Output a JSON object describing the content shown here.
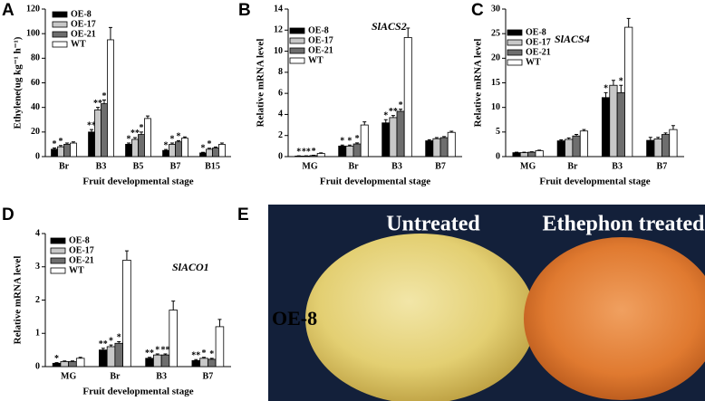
{
  "chart_data": [
    {
      "type": "bar",
      "panel_label": "A",
      "y_label": "Ethylene(ug kg⁻¹ h⁻¹)",
      "x_label": "Fruit developmental stage",
      "categories": [
        "Br",
        "B3",
        "B5",
        "B7",
        "B15"
      ],
      "ylim": [
        0,
        120
      ],
      "yticks": [
        0,
        20,
        40,
        60,
        80,
        100,
        120
      ],
      "series": [
        {
          "name": "OE-8",
          "color": "#000000",
          "values": [
            6,
            20,
            10,
            5,
            3
          ],
          "errors": [
            1,
            2,
            1,
            0.8,
            0.5
          ],
          "sig": [
            "*",
            "**",
            "*",
            "*",
            "*"
          ]
        },
        {
          "name": "OE-17",
          "color": "#c8c8c8",
          "values": [
            8,
            38,
            14,
            10,
            6
          ],
          "errors": [
            1,
            2,
            1.5,
            1,
            0.8
          ],
          "sig": [
            "*",
            "**",
            "**",
            "*",
            "*"
          ]
        },
        {
          "name": "OE-21",
          "color": "#6e6e6e",
          "values": [
            10,
            43,
            18,
            12,
            7
          ],
          "errors": [
            1,
            3,
            2,
            1,
            0.8
          ],
          "sig": [
            null,
            "*",
            "*",
            "*",
            null
          ]
        },
        {
          "name": "WT",
          "color": "#ffffff",
          "values": [
            11,
            95,
            31,
            15,
            10
          ],
          "errors": [
            1,
            10,
            2,
            1,
            1
          ],
          "sig": [
            null,
            null,
            null,
            null,
            null
          ]
        }
      ]
    },
    {
      "type": "bar",
      "panel_label": "B",
      "title": "SlACS2",
      "y_label": "Relative mRNA level",
      "x_label": "Fruit developmental stage",
      "categories": [
        "MG",
        "Br",
        "B3",
        "B7"
      ],
      "ylim": [
        0,
        14
      ],
      "yticks": [
        0,
        2,
        4,
        6,
        8,
        10,
        12,
        14
      ],
      "series": [
        {
          "name": "OE-8",
          "color": "#000000",
          "values": [
            0.05,
            1.0,
            3.2,
            1.5
          ],
          "errors": [
            0.02,
            0.1,
            0.3,
            0.1
          ],
          "sig": [
            "*",
            "*",
            "*",
            null
          ]
        },
        {
          "name": "OE-17",
          "color": "#c8c8c8",
          "values": [
            0.05,
            1.0,
            3.7,
            1.7
          ],
          "errors": [
            0.02,
            0.1,
            0.2,
            0.1
          ],
          "sig": [
            "**",
            "*",
            "**",
            null
          ]
        },
        {
          "name": "OE-21",
          "color": "#6e6e6e",
          "values": [
            0.1,
            1.2,
            4.3,
            1.8
          ],
          "errors": [
            0.03,
            0.1,
            0.2,
            0.1
          ],
          "sig": [
            "*",
            "*",
            "*",
            null
          ]
        },
        {
          "name": "WT",
          "color": "#ffffff",
          "values": [
            0.3,
            3.0,
            11.3,
            2.3
          ],
          "errors": [
            0.05,
            0.3,
            0.9,
            0.1
          ],
          "sig": [
            null,
            null,
            null,
            null
          ]
        }
      ]
    },
    {
      "type": "bar",
      "panel_label": "C",
      "title": "SlACS4",
      "y_label": "Relative mRNA level",
      "x_label": "Fruit developmental stage",
      "categories": [
        "MG",
        "Br",
        "B3",
        "B7"
      ],
      "ylim": [
        0,
        30
      ],
      "yticks": [
        0,
        5,
        10,
        15,
        20,
        25,
        30
      ],
      "series": [
        {
          "name": "OE-8",
          "color": "#000000",
          "values": [
            0.8,
            3.2,
            12,
            3.3
          ],
          "errors": [
            0.1,
            0.2,
            1,
            0.6
          ],
          "sig": [
            null,
            null,
            "*",
            null
          ]
        },
        {
          "name": "OE-17",
          "color": "#c8c8c8",
          "values": [
            0.8,
            3.5,
            14.5,
            3.6
          ],
          "errors": [
            0.1,
            0.3,
            1,
            0.3
          ],
          "sig": [
            null,
            null,
            null,
            null
          ]
        },
        {
          "name": "OE-21",
          "color": "#6e6e6e",
          "values": [
            0.9,
            4.2,
            13,
            4.5
          ],
          "errors": [
            0.1,
            0.3,
            1.5,
            0.3
          ],
          "sig": [
            null,
            null,
            "*",
            null
          ]
        },
        {
          "name": "WT",
          "color": "#ffffff",
          "values": [
            1.2,
            5.2,
            26.3,
            5.5
          ],
          "errors": [
            0.1,
            0.3,
            1.8,
            0.8
          ],
          "sig": [
            null,
            null,
            null,
            null
          ]
        }
      ]
    },
    {
      "type": "bar",
      "panel_label": "D",
      "title": "SlACO1",
      "y_label": "Relative mRNA level",
      "x_label": "Fruit developmental stage",
      "categories": [
        "MG",
        "Br",
        "B3",
        "B7"
      ],
      "ylim": [
        0,
        4
      ],
      "yticks": [
        0,
        1,
        2,
        3,
        4
      ],
      "series": [
        {
          "name": "OE-8",
          "color": "#000000",
          "values": [
            0.1,
            0.5,
            0.25,
            0.18
          ],
          "errors": [
            0.02,
            0.05,
            0.03,
            0.03
          ],
          "sig": [
            "*",
            "**",
            "**",
            "**"
          ]
        },
        {
          "name": "OE-17",
          "color": "#c8c8c8",
          "values": [
            0.15,
            0.6,
            0.35,
            0.25
          ],
          "errors": [
            0.02,
            0.05,
            0.03,
            0.03
          ],
          "sig": [
            null,
            "*",
            "*",
            "*"
          ]
        },
        {
          "name": "OE-21",
          "color": "#6e6e6e",
          "values": [
            0.15,
            0.7,
            0.35,
            0.22
          ],
          "errors": [
            0.02,
            0.05,
            0.03,
            0.03
          ],
          "sig": [
            null,
            "*",
            "**",
            "*"
          ]
        },
        {
          "name": "WT",
          "color": "#ffffff",
          "values": [
            0.25,
            3.2,
            1.7,
            1.2
          ],
          "errors": [
            0.03,
            0.28,
            0.27,
            0.22
          ],
          "sig": [
            null,
            null,
            null,
            null
          ]
        }
      ]
    }
  ],
  "photo_panel": {
    "panel_label": "E",
    "titles": [
      "Untreated",
      "Ethephon treated"
    ],
    "row_label": "OE-8"
  }
}
